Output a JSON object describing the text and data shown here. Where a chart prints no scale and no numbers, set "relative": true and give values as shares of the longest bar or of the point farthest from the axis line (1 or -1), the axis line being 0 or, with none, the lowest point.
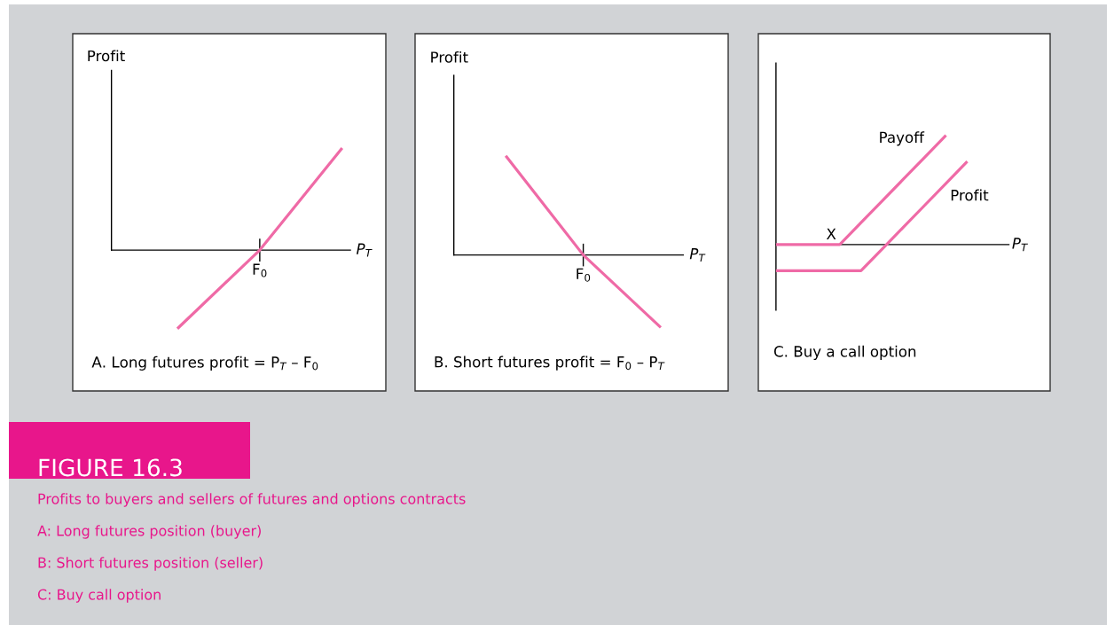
{
  "chart_data": [
    {
      "type": "line",
      "relative": true,
      "categories": [
        null,
        null,
        null
      ],
      "xlabel": "P$_{T}$",
      "ylabel": "Profit",
      "series": [
        {
          "color": "#ef6aa6",
          "values": [
            -0.77,
            0,
            1
          ]
        }
      ],
      "annotations": [
        "F$_{0}$",
        "A. Long futures profit = P$_{T}$ – F$_{0}$"
      ]
    },
    {
      "type": "line",
      "relative": true,
      "categories": [
        null,
        null,
        null
      ],
      "xlabel": "P$_{T}$",
      "ylabel": "Profit",
      "series": [
        {
          "color": "#ef6aa6",
          "values": [
            1,
            0,
            -0.73
          ]
        }
      ],
      "annotations": [
        "F$_{0}$",
        "B. Short futures profit = F$_{0}$ – P$_{T}$"
      ]
    },
    {
      "type": "line",
      "relative": true,
      "categories": [
        null,
        null,
        null,
        null,
        null,
        null,
        null,
        null,
        null,
        null
      ],
      "xlabel": "P$_{T}$",
      "series": [
        {
          "name": "Payoff",
          "color": "#ef6aa6",
          "values": [
            0,
            0,
            0,
            0,
            0.2,
            0.4,
            0.6,
            0.8,
            1,
            null
          ]
        },
        {
          "name": "Profit",
          "color": "#ef6aa6",
          "values": [
            -0.24,
            -0.24,
            -0.24,
            -0.24,
            -0.24,
            -0.04,
            0.16,
            0.36,
            0.56,
            0.76
          ]
        }
      ],
      "annotations": [
        "X",
        "C. Buy a call option"
      ]
    },
    {
      "type": "other",
      "title": "FIGURE 16.3",
      "subtitle": "Profits to buyers and sellers of futures and options contracts",
      "annotations": [
        "A: Long futures position (buyer)",
        "B: Short futures position (seller)",
        "C: Buy call option"
      ]
    }
  ]
}
